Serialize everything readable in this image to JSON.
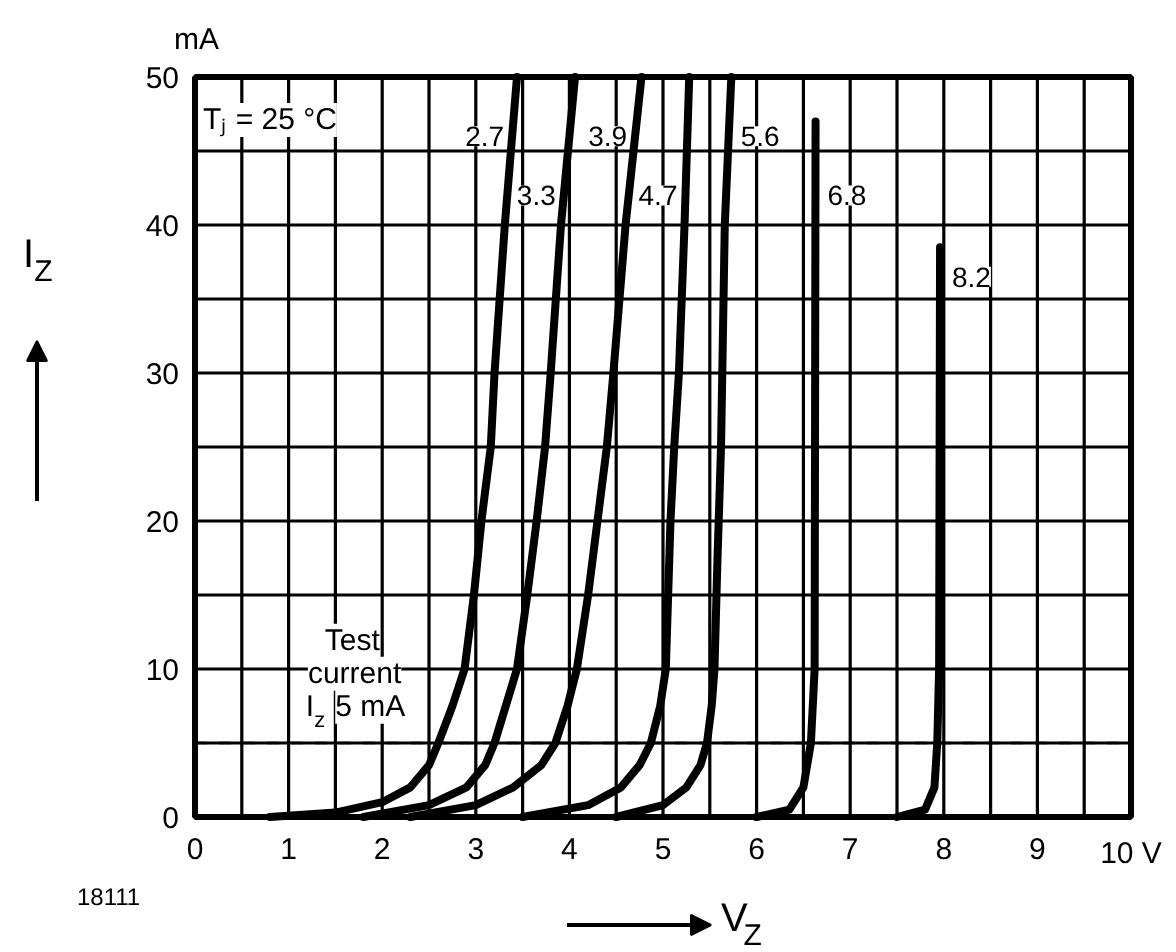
{
  "chart_data": {
    "type": "line",
    "ylabel": "I$_{Z}$",
    "xlabel": "V$_{Z}$",
    "xlim": [
      0,
      10
    ],
    "ylim": [
      0,
      50
    ],
    "xticks": [
      0,
      {
        "value": 0.5,
        "label": null
      },
      1,
      {
        "value": 1.5,
        "label": null
      },
      2,
      {
        "value": 2.5,
        "label": null
      },
      3,
      {
        "value": 3.5,
        "label": null
      },
      4,
      {
        "value": 4.5,
        "label": null
      },
      5,
      {
        "value": 5.5,
        "label": null
      },
      6,
      {
        "value": 6.5,
        "label": null
      },
      7,
      {
        "value": 7.5,
        "label": null
      },
      8,
      {
        "value": 8.5,
        "label": null
      },
      9,
      {
        "value": 9.5,
        "label": null
      },
      {
        "value": 10,
        "label": "10 V"
      }
    ],
    "yticks": [
      0,
      {
        "value": 5,
        "label": null
      },
      10,
      {
        "value": 15,
        "label": null
      },
      20,
      {
        "value": 25,
        "label": null
      },
      30,
      {
        "value": 35,
        "label": null
      },
      40,
      {
        "value": 45,
        "label": null
      },
      50
    ],
    "grid": true,
    "series": [
      {
        "name": "2.7",
        "color": "#000000",
        "x": [
          0.8,
          1.5,
          2.0,
          2.3,
          2.5,
          2.6,
          2.75,
          2.88,
          2.98,
          3.06,
          3.16,
          3.2,
          3.31,
          3.44
        ],
        "values": [
          0,
          0.3,
          1,
          2,
          3.5,
          5,
          7.5,
          10,
          15,
          20,
          25,
          30,
          40,
          50
        ]
      },
      {
        "name": "3.3",
        "color": "#000000",
        "x": [
          1.8,
          2.5,
          2.9,
          3.1,
          3.2,
          3.32,
          3.44,
          3.55,
          3.65,
          3.74,
          3.8,
          3.91,
          4.06
        ],
        "values": [
          0,
          0.8,
          2,
          3.5,
          5,
          7.5,
          10,
          15,
          20,
          25,
          30,
          40,
          50
        ]
      },
      {
        "name": "3.9",
        "color": "#000000",
        "x": [
          2.3,
          3.0,
          3.4,
          3.7,
          3.85,
          3.98,
          4.08,
          4.2,
          4.3,
          4.4,
          4.47,
          4.6,
          4.77
        ],
        "values": [
          0,
          0.8,
          2,
          3.5,
          5,
          7.5,
          10,
          15,
          20,
          25,
          30,
          40,
          50
        ]
      },
      {
        "name": "4.7",
        "color": "#000000",
        "x": [
          3.5,
          4.2,
          4.55,
          4.75,
          4.87,
          4.97,
          5.03,
          5.08,
          5.12,
          5.17,
          5.23,
          5.28
        ],
        "values": [
          0,
          0.8,
          2,
          3.5,
          5,
          7.5,
          10,
          20,
          25,
          30,
          40,
          50
        ]
      },
      {
        "name": "5.6",
        "color": "#000000",
        "x": [
          4.5,
          5.0,
          5.25,
          5.4,
          5.47,
          5.52,
          5.55,
          5.58,
          5.62,
          5.66,
          5.73
        ],
        "values": [
          0,
          0.8,
          2,
          3.5,
          5,
          7.5,
          10,
          17,
          25,
          40,
          50
        ]
      },
      {
        "name": "6.8",
        "color": "#000000",
        "x": [
          6.0,
          6.35,
          6.5,
          6.58,
          6.62,
          6.63
        ],
        "values": [
          0,
          0.5,
          2,
          5,
          10,
          47
        ]
      },
      {
        "name": "8.2",
        "color": "#000000",
        "x": [
          7.5,
          7.8,
          7.9,
          7.93,
          7.95,
          7.96
        ],
        "values": [
          0,
          0.5,
          2,
          5,
          10,
          38.5
        ]
      }
    ],
    "ref_lines": [
      {
        "axis": "y",
        "value": 5,
        "label": "Test\ncurrent\nI$_{z}$ 5 mA",
        "line_style": "dashed",
        "color": "#000000"
      }
    ],
    "annotations": [
      "Tⱼ = 25 °C",
      "mA",
      "18111"
    ]
  }
}
